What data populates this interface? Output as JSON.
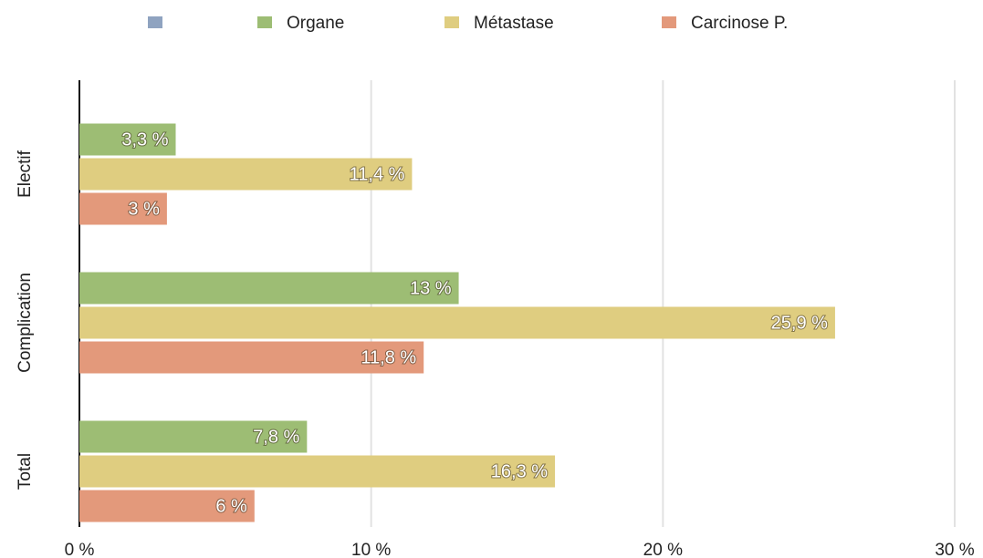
{
  "chart_data": {
    "type": "bar",
    "orientation": "horizontal",
    "categories": [
      "Electif",
      "Complication",
      "Total"
    ],
    "series": [
      {
        "name": null,
        "color": "#8fa3c0",
        "values": [
          null,
          null,
          null
        ]
      },
      {
        "name": "Organe",
        "color": "#9dbd74",
        "values": [
          3.3,
          13,
          7.8
        ],
        "value_labels": [
          "3,3 %",
          "13 %",
          "7,8 %"
        ]
      },
      {
        "name": "Métastase",
        "color": "#dfcd80",
        "values": [
          11.4,
          25.9,
          16.3
        ],
        "value_labels": [
          "11,4 %",
          "25,9 %",
          "16,3 %"
        ]
      },
      {
        "name": "Carcinose P.",
        "color": "#e3997b",
        "values": [
          3,
          11.8,
          6
        ],
        "value_labels": [
          "3 %",
          "11,8 %",
          "6 %"
        ]
      }
    ],
    "xlim": [
      0,
      30
    ],
    "xticks": [
      {
        "value": 0,
        "label": "0 %"
      },
      {
        "value": 10,
        "label": "10 %"
      },
      {
        "value": 20,
        "label": "20 %"
      },
      {
        "value": 30,
        "label": "30 %"
      }
    ],
    "grid": true,
    "legend": "top"
  }
}
